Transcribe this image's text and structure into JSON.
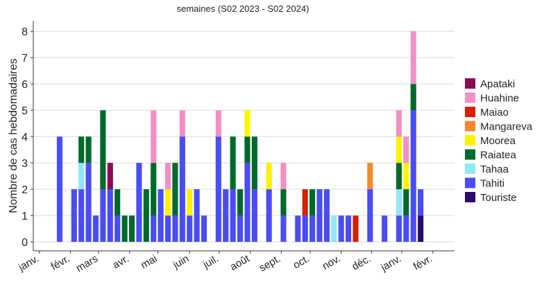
{
  "chart_data": {
    "type": "stacked_bar",
    "subtitle": "semaines (S02 2023 - S02 2024)",
    "y_label": "Nombre de cas hebdomadaires",
    "categories": [
      null,
      null,
      null,
      null,
      null,
      null,
      null,
      null,
      null,
      null,
      null,
      null,
      null,
      null,
      null,
      null,
      null,
      null,
      null,
      null,
      null,
      null,
      null,
      null,
      null,
      null,
      null,
      null,
      null,
      null,
      null,
      null,
      null,
      null,
      null,
      null,
      null,
      null,
      null,
      null,
      null,
      null,
      null,
      null,
      null,
      null,
      null,
      null,
      null,
      null,
      null
    ],
    "series": [
      {
        "name": "Apataki",
        "color": "#8b0a57",
        "values": [
          0,
          0,
          0,
          0,
          0,
          0,
          0,
          1,
          0,
          0,
          0,
          0,
          0,
          0,
          0,
          0,
          0,
          0,
          0,
          0,
          0,
          0,
          0,
          0,
          0,
          0,
          0,
          0,
          0,
          0,
          0,
          0,
          0,
          0,
          0,
          0,
          0,
          0,
          0,
          0,
          0,
          0,
          0,
          0,
          0,
          0,
          0,
          0,
          0,
          0,
          0
        ]
      },
      {
        "name": "Huahine",
        "color": "#f48fc5",
        "values": [
          0,
          0,
          0,
          0,
          0,
          0,
          0,
          0,
          0,
          0,
          0,
          0,
          0,
          2,
          0,
          1,
          0,
          1,
          0,
          0,
          0,
          0,
          1,
          0,
          0,
          0,
          0,
          0,
          0,
          0,
          0,
          1,
          0,
          0,
          0,
          0,
          0,
          0,
          0,
          0,
          0,
          0,
          0,
          0,
          0,
          0,
          0,
          1,
          1,
          2,
          0
        ]
      },
      {
        "name": "Maiao",
        "color": "#d62000",
        "values": [
          0,
          0,
          0,
          0,
          0,
          0,
          0,
          0,
          0,
          0,
          0,
          0,
          0,
          0,
          0,
          0,
          0,
          0,
          0,
          0,
          0,
          0,
          0,
          0,
          0,
          0,
          0,
          0,
          0,
          0,
          0,
          0,
          0,
          0,
          1,
          0,
          0,
          0,
          0,
          0,
          0,
          1,
          0,
          0,
          0,
          0,
          0,
          0,
          0,
          0,
          0
        ]
      },
      {
        "name": "Mangareva",
        "color": "#f5872c",
        "values": [
          0,
          0,
          0,
          0,
          0,
          0,
          0,
          0,
          0,
          0,
          0,
          0,
          0,
          0,
          0,
          0,
          0,
          0,
          0,
          0,
          0,
          0,
          0,
          0,
          0,
          0,
          0,
          0,
          0,
          0,
          0,
          0,
          0,
          0,
          0,
          0,
          0,
          0,
          0,
          0,
          0,
          0,
          0,
          1,
          0,
          0,
          0,
          0,
          0,
          0,
          0
        ]
      },
      {
        "name": "Moorea",
        "color": "#fff200",
        "values": [
          0,
          0,
          0,
          0,
          0,
          0,
          0,
          0,
          0,
          0,
          0,
          0,
          0,
          0,
          0,
          1,
          0,
          0,
          1,
          0,
          0,
          0,
          0,
          0,
          0,
          0,
          1,
          0,
          0,
          1,
          0,
          0,
          0,
          0,
          0,
          0,
          0,
          0,
          0,
          0,
          0,
          0,
          0,
          0,
          0,
          0,
          0,
          1,
          1,
          0,
          0
        ]
      },
      {
        "name": "Raiatea",
        "color": "#006a2a",
        "values": [
          0,
          0,
          0,
          1,
          1,
          0,
          3,
          0,
          1,
          1,
          1,
          0,
          2,
          2,
          0,
          0,
          2,
          0,
          0,
          0,
          0,
          0,
          0,
          0,
          2,
          1,
          1,
          2,
          0,
          0,
          0,
          1,
          0,
          0,
          0,
          1,
          0,
          0,
          0,
          0,
          0,
          0,
          0,
          0,
          0,
          0,
          0,
          1,
          1,
          1,
          0
        ]
      },
      {
        "name": "Tahaa",
        "color": "#8fe8f4",
        "values": [
          0,
          0,
          0,
          1,
          0,
          0,
          0,
          0,
          0,
          0,
          0,
          0,
          0,
          0,
          0,
          0,
          0,
          0,
          0,
          0,
          0,
          0,
          0,
          0,
          0,
          0,
          0,
          0,
          0,
          0,
          0,
          0,
          0,
          0,
          0,
          0,
          0,
          0,
          1,
          0,
          0,
          0,
          0,
          0,
          0,
          0,
          0,
          1,
          0,
          0,
          0
        ]
      },
      {
        "name": "Tahiti",
        "color": "#4a4df5",
        "values": [
          4,
          0,
          2,
          2,
          3,
          1,
          2,
          2,
          1,
          0,
          0,
          3,
          0,
          1,
          2,
          1,
          1,
          4,
          1,
          2,
          1,
          0,
          4,
          2,
          2,
          1,
          3,
          2,
          0,
          2,
          0,
          1,
          0,
          1,
          1,
          1,
          2,
          2,
          0,
          1,
          1,
          0,
          0,
          2,
          0,
          1,
          0,
          1,
          1,
          5,
          1
        ]
      },
      {
        "name": "Touriste",
        "color": "#2a0a6b",
        "values": [
          0,
          0,
          0,
          0,
          0,
          0,
          0,
          0,
          0,
          0,
          0,
          0,
          0,
          0,
          0,
          0,
          0,
          0,
          0,
          0,
          0,
          0,
          0,
          0,
          0,
          0,
          0,
          0,
          0,
          0,
          0,
          0,
          0,
          0,
          0,
          0,
          0,
          0,
          0,
          0,
          0,
          0,
          0,
          0,
          0,
          0,
          0,
          0,
          0,
          0,
          1
        ]
      }
    ],
    "xlim": [
      -3.65,
      54.7
    ],
    "xticks": [
      {
        "value": -2.8,
        "label": "janv."
      },
      {
        "value": 1.5,
        "label": "févr."
      },
      {
        "value": 5.4,
        "label": "mars"
      },
      {
        "value": 9.7,
        "label": "avr."
      },
      {
        "value": 13.6,
        "label": "mai"
      },
      {
        "value": 18,
        "label": "juin"
      },
      {
        "value": 22.1,
        "label": "juil."
      },
      {
        "value": 26.4,
        "label": "août"
      },
      {
        "value": 30.7,
        "label": "sept."
      },
      {
        "value": 34.7,
        "label": "oct."
      },
      {
        "value": 39,
        "label": "nov."
      },
      {
        "value": 43.2,
        "label": "déc."
      },
      {
        "value": 47.4,
        "label": "janv."
      },
      {
        "value": 51.7,
        "label": "févr."
      }
    ],
    "ylim": [
      -0.34,
      8.4
    ],
    "yticks": [
      0,
      1,
      2,
      3,
      4,
      5,
      6,
      7,
      8
    ],
    "grid": true,
    "legend": "right"
  }
}
